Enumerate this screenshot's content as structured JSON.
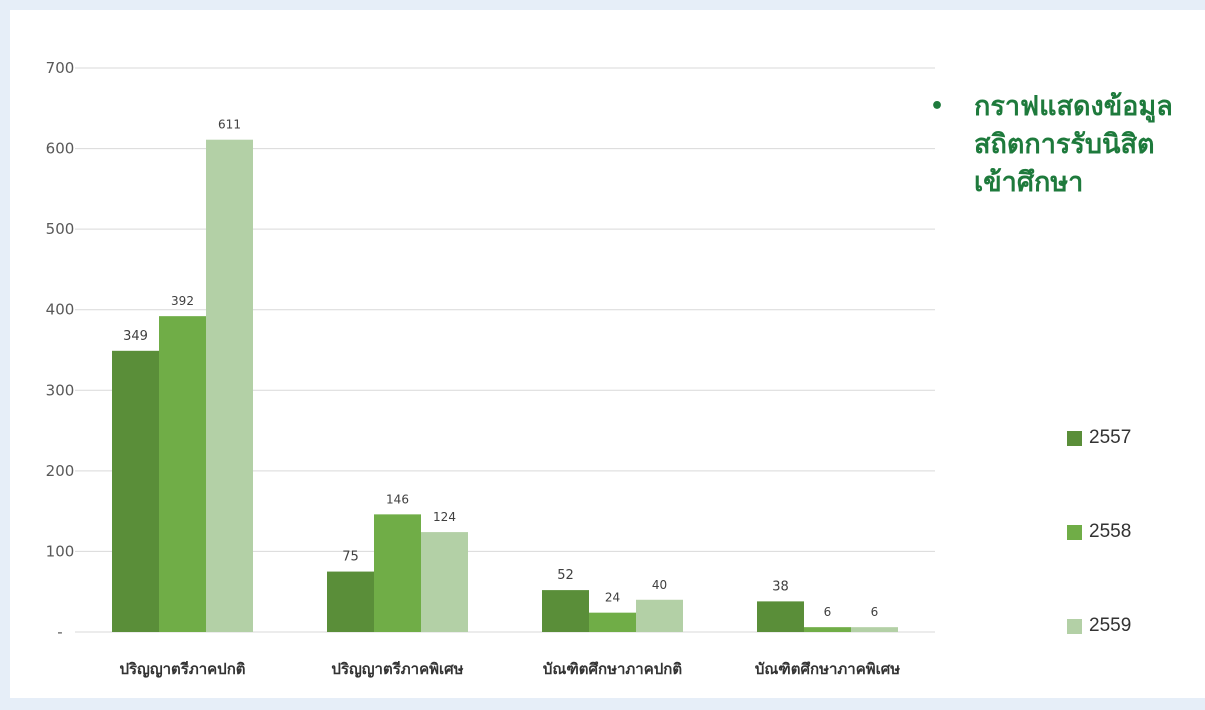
{
  "title": "กราฟแสดงข้อมูลสถิตการรับนิสิตเข้าศึกษา",
  "title_lines": [
    "กราฟแสดงข้อมูล",
    "สถิตการรับนิสิต",
    "เข้าศึกษา"
  ],
  "title_bullet": "•",
  "colors": {
    "2557": "#5a8e39",
    "2558": "#70ad47",
    "2559": "#b3d0a6",
    "gridline": "#d9d9d9",
    "title": "#1e7a3c"
  },
  "chart_data": {
    "type": "bar",
    "categories": [
      "ปริญญาตรีภาคปกติ",
      "ปริญญาตรีภาคพิเศษ",
      "บัณฑิตศึกษาภาคปกติ",
      "บัณฑิตศึกษาภาคพิเศษ"
    ],
    "series": [
      {
        "name": "2557",
        "values": [
          349,
          75,
          52,
          38
        ]
      },
      {
        "name": "2558",
        "values": [
          392,
          146,
          24,
          6
        ]
      },
      {
        "name": "2559",
        "values": [
          611,
          124,
          40,
          6
        ]
      }
    ],
    "ylim": [
      0,
      700
    ],
    "yticks": [
      0,
      100,
      200,
      300,
      400,
      500,
      600,
      700
    ],
    "ytick_labels": [
      "-",
      "100",
      "200",
      "300",
      "400",
      "500",
      "600",
      "700"
    ],
    "grid": true,
    "legend_position": "right",
    "data_labels": true
  }
}
